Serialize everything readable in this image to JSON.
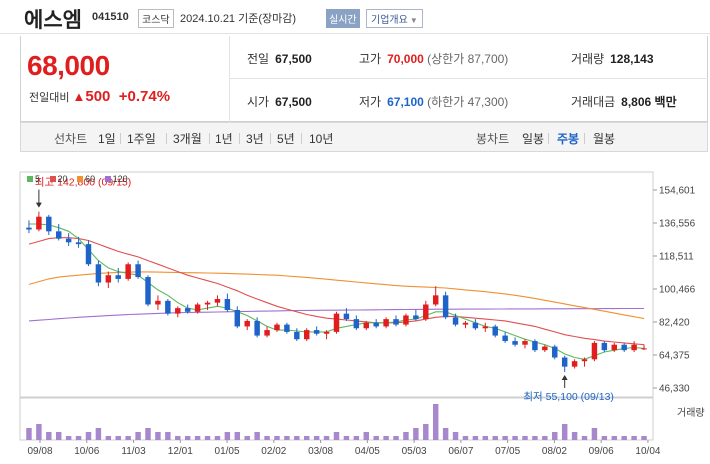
{
  "header": {
    "name": "에스엠",
    "code": "041510",
    "market": "코스닥",
    "datetime": "2024.10.21  기준(장마감)",
    "realtime": "실시간",
    "company_info": "기업개요"
  },
  "quote": {
    "price": "68,000",
    "change_label": "전일대비",
    "change_amount": "500",
    "change_pct": "+0.74%",
    "prev_close": {
      "label": "전일",
      "value": "67,500"
    },
    "high": {
      "label": "고가",
      "value": "70,000",
      "sub": "(상한가 87,700)"
    },
    "volume": {
      "label": "거래량",
      "value": "128,143"
    },
    "open": {
      "label": "시가",
      "value": "67,500"
    },
    "low": {
      "label": "저가",
      "value": "67,100",
      "sub": "(하한가 47,300)"
    },
    "amount": {
      "label": "거래대금",
      "value": "8,806",
      "unit": "백만"
    }
  },
  "tabs": {
    "line_label": "선차트",
    "periods": [
      "1일",
      "1주일",
      "3개월",
      "1년",
      "3년",
      "5년",
      "10년"
    ],
    "candle_label": "봉차트",
    "candles": [
      "일봉",
      "주봉",
      "월봉"
    ],
    "active_candle": "주봉"
  },
  "colors": {
    "up": "#e01e1e",
    "down": "#1e64c8",
    "ma5": "#5fb85f",
    "ma20": "#e05050",
    "ma60": "#f09030",
    "ma120": "#a070d0",
    "volume": "#a888cc"
  },
  "chart_data": {
    "type": "candlestick",
    "y_ticks": [
      "154,601",
      "136,556",
      "118,511",
      "100,466",
      "82,420",
      "64,375",
      "46,330"
    ],
    "ylim": [
      46330,
      154601
    ],
    "x_ticks": [
      "09/08",
      "10/06",
      "11/03",
      "12/01",
      "01/05",
      "02/02",
      "03/08",
      "04/05",
      "05/03",
      "06/07",
      "07/05",
      "08/02",
      "09/06",
      "10/04"
    ],
    "legend": [
      "5",
      "20",
      "60",
      "120"
    ],
    "annotations": {
      "high": "최고 142,800 (09/15)",
      "low": "최저 55,100 (09/13)"
    },
    "volume_label": "거래량",
    "candles": [
      [
        134000,
        138000,
        131000,
        133000
      ],
      [
        133000,
        142800,
        132000,
        140000
      ],
      [
        140000,
        141000,
        130000,
        132000
      ],
      [
        132000,
        136000,
        127000,
        128000
      ],
      [
        128000,
        131000,
        124000,
        126000
      ],
      [
        126000,
        129000,
        123000,
        125000
      ],
      [
        125000,
        127000,
        113000,
        114000
      ],
      [
        114000,
        116000,
        102000,
        104000
      ],
      [
        104000,
        110000,
        101000,
        108000
      ],
      [
        108000,
        112000,
        104000,
        106000
      ],
      [
        106000,
        115000,
        105000,
        114000
      ],
      [
        114000,
        116000,
        106000,
        107000
      ],
      [
        107000,
        108000,
        91000,
        92000
      ],
      [
        92000,
        97000,
        89000,
        94000
      ],
      [
        94000,
        95000,
        86000,
        87000
      ],
      [
        87000,
        91000,
        85000,
        90000
      ],
      [
        90000,
        92000,
        87000,
        88000
      ],
      [
        88000,
        93000,
        87000,
        92000
      ],
      [
        92000,
        94000,
        89000,
        93000
      ],
      [
        93000,
        97000,
        91000,
        95000
      ],
      [
        95000,
        98000,
        88000,
        89000
      ],
      [
        89000,
        91000,
        79000,
        80000
      ],
      [
        80000,
        84000,
        78000,
        83000
      ],
      [
        83000,
        85000,
        74000,
        75000
      ],
      [
        75000,
        80000,
        74000,
        78000
      ],
      [
        78000,
        82000,
        77000,
        81000
      ],
      [
        81000,
        82000,
        76000,
        77000
      ],
      [
        77000,
        79000,
        72000,
        73000
      ],
      [
        73000,
        79000,
        72000,
        78000
      ],
      [
        78000,
        80000,
        75000,
        76000
      ],
      [
        76000,
        78000,
        73000,
        77000
      ],
      [
        77000,
        88000,
        76000,
        87000
      ],
      [
        87000,
        90000,
        83000,
        84000
      ],
      [
        84000,
        86000,
        78000,
        79000
      ],
      [
        79000,
        83000,
        78000,
        82000
      ],
      [
        82000,
        84000,
        79000,
        80000
      ],
      [
        80000,
        85000,
        79000,
        84000
      ],
      [
        84000,
        86000,
        80000,
        81000
      ],
      [
        81000,
        87000,
        80000,
        86000
      ],
      [
        86000,
        89000,
        83000,
        84000
      ],
      [
        84000,
        94000,
        83000,
        92000
      ],
      [
        92000,
        102000,
        91000,
        97000
      ],
      [
        97000,
        99000,
        84000,
        85000
      ],
      [
        85000,
        87000,
        80000,
        81000
      ],
      [
        81000,
        83000,
        79000,
        82000
      ],
      [
        82000,
        84000,
        78000,
        79000
      ],
      [
        79000,
        82000,
        77000,
        80000
      ],
      [
        80000,
        81000,
        74000,
        75000
      ],
      [
        75000,
        77000,
        71000,
        72000
      ],
      [
        72000,
        74000,
        69000,
        70000
      ],
      [
        70000,
        73000,
        68000,
        72000
      ],
      [
        72000,
        73000,
        66000,
        67000
      ],
      [
        67000,
        70000,
        66000,
        69000
      ],
      [
        69000,
        70000,
        62000,
        63000
      ],
      [
        63000,
        64000,
        55100,
        58000
      ],
      [
        58000,
        62000,
        57000,
        61000
      ],
      [
        61000,
        63000,
        58000,
        62000
      ],
      [
        62000,
        72000,
        61000,
        71000
      ],
      [
        71000,
        72000,
        66000,
        67000
      ],
      [
        67000,
        71000,
        66000,
        70000
      ],
      [
        70000,
        71000,
        66000,
        67000
      ],
      [
        67000,
        72000,
        66000,
        70000
      ],
      [
        67500,
        70000,
        67100,
        68000
      ]
    ],
    "ma5": [
      136000,
      136000,
      135500,
      134000,
      132000,
      128000,
      122000,
      116000,
      112000,
      110000,
      109000,
      108000,
      104000,
      100000,
      97000,
      93000,
      90000,
      89000,
      90000,
      91000,
      90000,
      88000,
      86000,
      83000,
      80000,
      78000,
      78000,
      77500,
      77000,
      77000,
      77000,
      79000,
      80000,
      81000,
      82000,
      82000,
      82000,
      82500,
      83500,
      84000,
      86000,
      88000,
      88000,
      86000,
      84000,
      82000,
      80000,
      79000,
      77000,
      75000,
      73000,
      71500,
      70000,
      68000,
      65000,
      63000,
      62000,
      64000,
      66000,
      67000,
      68000,
      68500,
      68000
    ],
    "ma20": [
      125000,
      126500,
      128000,
      128500,
      128500,
      128000,
      127000,
      125000,
      123000,
      121000,
      119500,
      118000,
      116000,
      114000,
      112000,
      110000,
      108000,
      106500,
      105000,
      103500,
      101500,
      99500,
      97000,
      95000,
      93000,
      91000,
      89500,
      88000,
      86500,
      85500,
      84500,
      84000,
      83500,
      83000,
      82500,
      82000,
      82000,
      82000,
      82500,
      83000,
      84000,
      85000,
      85500,
      85500,
      85000,
      84500,
      84000,
      83500,
      83000,
      82000,
      81000,
      80000,
      78500,
      77000,
      75500,
      74500,
      73500,
      72800,
      72000,
      71500,
      71000,
      70500,
      70000
    ],
    "ma60": [
      103000,
      104500,
      106000,
      107000,
      107500,
      108000,
      108500,
      109000,
      109300,
      109500,
      109700,
      109800,
      109800,
      109700,
      109600,
      109500,
      109400,
      109300,
      109200,
      109100,
      109000,
      108800,
      108600,
      108400,
      108200,
      108000,
      107600,
      107200,
      106800,
      106300,
      105800,
      105300,
      104800,
      104300,
      103800,
      103300,
      102800,
      102300,
      102000,
      101700,
      101500,
      101300,
      101000,
      100500,
      100000,
      99500,
      99000,
      98400,
      97800,
      97000,
      96200,
      95300,
      94300,
      93300,
      92300,
      91300,
      90300,
      89300,
      88300,
      87300,
      86300,
      85300,
      84300
    ],
    "ma120": [
      83000,
      83400,
      83800,
      84200,
      84600,
      85000,
      85300,
      85600,
      85900,
      86200,
      86500,
      86700,
      86900,
      87100,
      87300,
      87500,
      87600,
      87700,
      87800,
      87900,
      88000,
      88100,
      88200,
      88300,
      88400,
      88500,
      88600,
      88700,
      88750,
      88800,
      88850,
      88900,
      88950,
      89000,
      89050,
      89100,
      89150,
      89200,
      89250,
      89300,
      89350,
      89400,
      89420,
      89440,
      89460,
      89480,
      89500,
      89520,
      89540,
      89560,
      89580,
      89600,
      89620,
      89640,
      89660,
      89680,
      89700,
      89720,
      89740,
      89760,
      89780,
      89800,
      89820
    ],
    "volume": [
      3,
      4,
      2,
      2,
      1,
      1,
      2,
      3,
      1,
      1,
      1,
      2,
      3,
      2,
      2,
      1,
      1,
      1,
      1,
      1,
      2,
      2,
      1,
      2,
      1,
      1,
      1,
      1,
      1,
      1,
      1,
      2,
      1,
      1,
      2,
      1,
      1,
      1,
      2,
      3,
      4,
      9,
      3,
      2,
      1,
      1,
      1,
      1,
      1,
      1,
      1,
      1,
      1,
      2,
      4,
      2,
      1,
      3,
      1,
      1,
      1,
      1,
      1
    ]
  }
}
